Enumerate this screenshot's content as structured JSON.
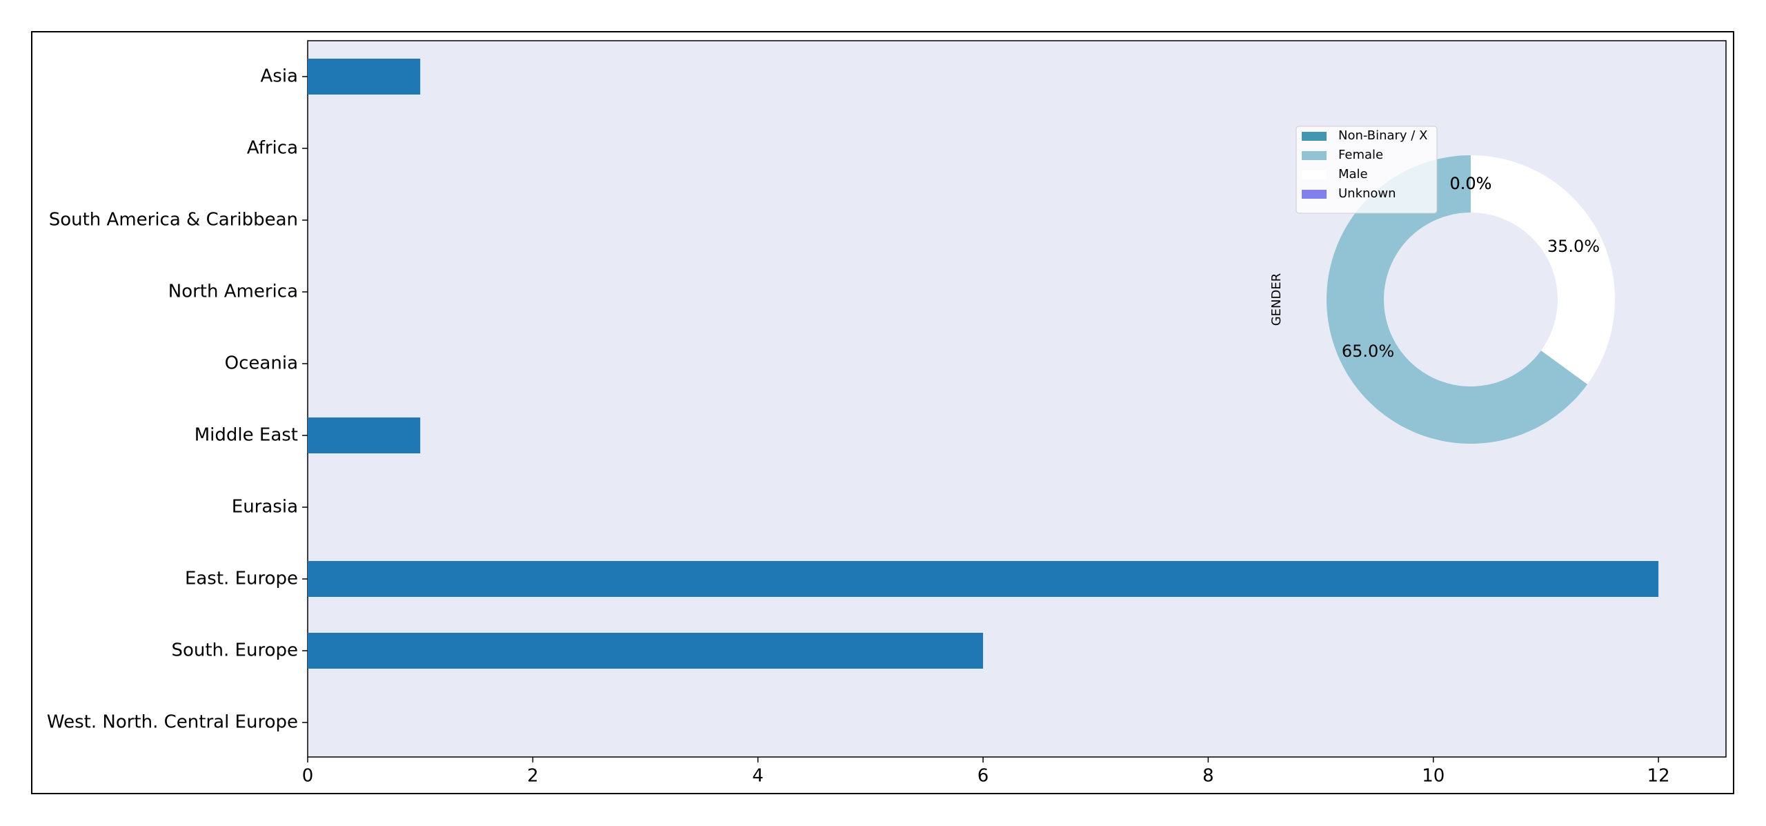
{
  "chart_data": [
    {
      "type": "barh",
      "categories": [
        "Asia",
        "Africa",
        "South America & Caribbean",
        "North America",
        "Oceania",
        "Middle East",
        "Eurasia",
        "East. Europe",
        "South. Europe",
        "West. North. Central Europe"
      ],
      "values": [
        1,
        0,
        0,
        0,
        0,
        1,
        0,
        12,
        6,
        0
      ],
      "color": "#1f77b4",
      "xlim": [
        0,
        12.6
      ],
      "xticks": [
        0,
        2,
        4,
        6,
        8,
        10,
        12
      ]
    },
    {
      "type": "pie",
      "ylabel": "GENDER",
      "categories": [
        "Non-Binary / X",
        "Female",
        "Male",
        "Unknown"
      ],
      "values": [
        0,
        65,
        35,
        0
      ],
      "value_labels": [
        "0.0%",
        "65.0%",
        "35.0%",
        "0.0%"
      ],
      "colors": [
        "#4396b2",
        "#92c3d4",
        "#ffffff",
        "#8080f0"
      ],
      "donut": true
    }
  ]
}
